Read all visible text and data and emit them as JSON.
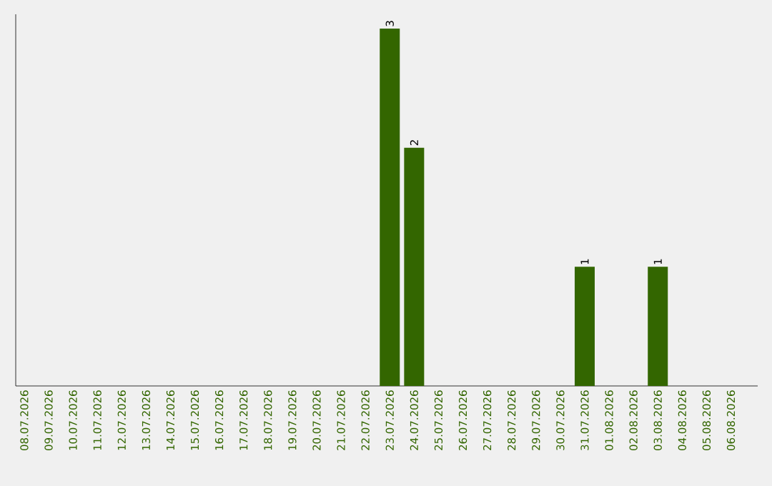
{
  "chart_data": {
    "type": "bar",
    "categories": [
      "08.07.2026",
      "09.07.2026",
      "10.07.2026",
      "11.07.2026",
      "12.07.2026",
      "13.07.2026",
      "14.07.2026",
      "15.07.2026",
      "16.07.2026",
      "17.07.2026",
      "18.07.2026",
      "19.07.2026",
      "20.07.2026",
      "21.07.2026",
      "22.07.2026",
      "23.07.2026",
      "24.07.2026",
      "25.07.2026",
      "26.07.2026",
      "27.07.2026",
      "28.07.2026",
      "29.07.2026",
      "30.07.2026",
      "31.07.2026",
      "01.08.2026",
      "02.08.2026",
      "03.08.2026",
      "04.08.2026",
      "05.08.2026",
      "06.08.2026"
    ],
    "values": [
      null,
      null,
      null,
      null,
      null,
      null,
      null,
      null,
      null,
      null,
      null,
      null,
      null,
      null,
      null,
      3,
      2,
      null,
      null,
      null,
      null,
      null,
      null,
      1,
      null,
      null,
      1,
      null,
      null,
      null
    ],
    "data_labels": true,
    "color": "#336600",
    "ylim": [
      0,
      3.12
    ],
    "tick_labels": "x",
    "grid": false
  }
}
